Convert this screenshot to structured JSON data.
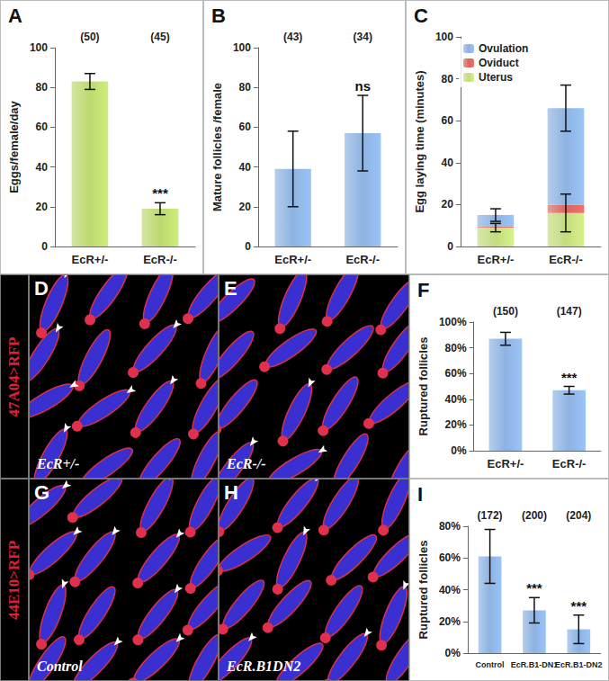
{
  "chart_data": [
    {
      "title": "A",
      "type": "bar",
      "categories": [
        "EcR+/-",
        "EcR-/-"
      ],
      "values": [
        83,
        19
      ],
      "errors": [
        4,
        3
      ],
      "annotations": [
        "(50)",
        "(45)"
      ],
      "significance": [
        null,
        "***"
      ],
      "ylabel": "Eggs/female/day",
      "ylim": [
        0,
        100
      ],
      "yticks": [
        0,
        20,
        40,
        60,
        80,
        100
      ],
      "color": "#bcd96f",
      "grid": false
    },
    {
      "title": "B",
      "type": "bar",
      "categories": [
        "EcR+/-",
        "EcR-/-"
      ],
      "values": [
        39,
        57
      ],
      "errors": [
        19,
        19
      ],
      "annotations": [
        "(43)",
        "(34)"
      ],
      "significance": [
        null,
        "ns"
      ],
      "ylabel": "Mature follicles /female",
      "ylim": [
        0,
        100
      ],
      "yticks": [
        0,
        20,
        40,
        60,
        80,
        100
      ],
      "color": "#8db3e2",
      "grid": false
    },
    {
      "title": "C",
      "type": "bar",
      "categories": [
        "EcR+/-",
        "EcR-/-"
      ],
      "stacked": true,
      "legend": "upper left",
      "series": [
        {
          "name": "Uterus",
          "color": "#c3dc7e",
          "values": [
            9,
            16
          ],
          "errors": [
            2,
            9
          ]
        },
        {
          "name": "Oviduct",
          "color": "#d9675f",
          "values": [
            0.5,
            4
          ]
        },
        {
          "name": "Ovulation",
          "color": "#8db3e2",
          "values": [
            5.5,
            46
          ],
          "errors": [
            3,
            11
          ]
        }
      ],
      "ylabel": "Egg laying time (minutes)",
      "ylim": [
        0,
        100
      ],
      "yticks": [
        0,
        20,
        40,
        60,
        80,
        100
      ],
      "grid": false
    },
    {
      "title": "F",
      "type": "bar",
      "categories": [
        "EcR+/-",
        "EcR-/-"
      ],
      "values": [
        87,
        47
      ],
      "errors": [
        5,
        3
      ],
      "annotations": [
        "(150)",
        "(147)"
      ],
      "significance": [
        null,
        "***"
      ],
      "ylabel": "Ruptured follicles",
      "ylim": [
        0,
        100
      ],
      "yticks": [
        {
          "value": 0,
          "label": "0%"
        },
        {
          "value": 20,
          "label": "20%"
        },
        {
          "value": 40,
          "label": "40%"
        },
        {
          "value": 60,
          "label": "60%"
        },
        {
          "value": 80,
          "label": "80%"
        },
        {
          "value": 100,
          "label": "100%"
        }
      ],
      "color": "#8db3e2",
      "grid": false
    },
    {
      "title": "I",
      "type": "bar",
      "categories": [
        "Control",
        "EcR.B1-DN1",
        "EcR.B1-DN2"
      ],
      "values": [
        61,
        27,
        15
      ],
      "errors": [
        17,
        8,
        9
      ],
      "annotations": [
        "(172)",
        "(200)",
        "(204)"
      ],
      "significance": [
        null,
        "***",
        "***"
      ],
      "ylabel": "Ruptured follicles",
      "ylim": [
        0,
        80
      ],
      "yticks": [
        {
          "value": 0,
          "label": "0%"
        },
        {
          "value": 20,
          "label": "20%"
        },
        {
          "value": 40,
          "label": "40%"
        },
        {
          "value": 60,
          "label": "60%"
        },
        {
          "value": 80,
          "label": "80%"
        }
      ],
      "color": "#8db3e2",
      "grid": false
    }
  ],
  "image_rows": [
    {
      "label": "47A04>RFP",
      "panels": [
        {
          "letter": "D",
          "text": "EcR+/-"
        },
        {
          "letter": "E",
          "text": "EcR-/-"
        }
      ]
    },
    {
      "label": "44E10>RFP",
      "panels": [
        {
          "letter": "G",
          "text": "Control"
        },
        {
          "letter": "H",
          "text": "EcR.B1DN2"
        }
      ]
    }
  ]
}
